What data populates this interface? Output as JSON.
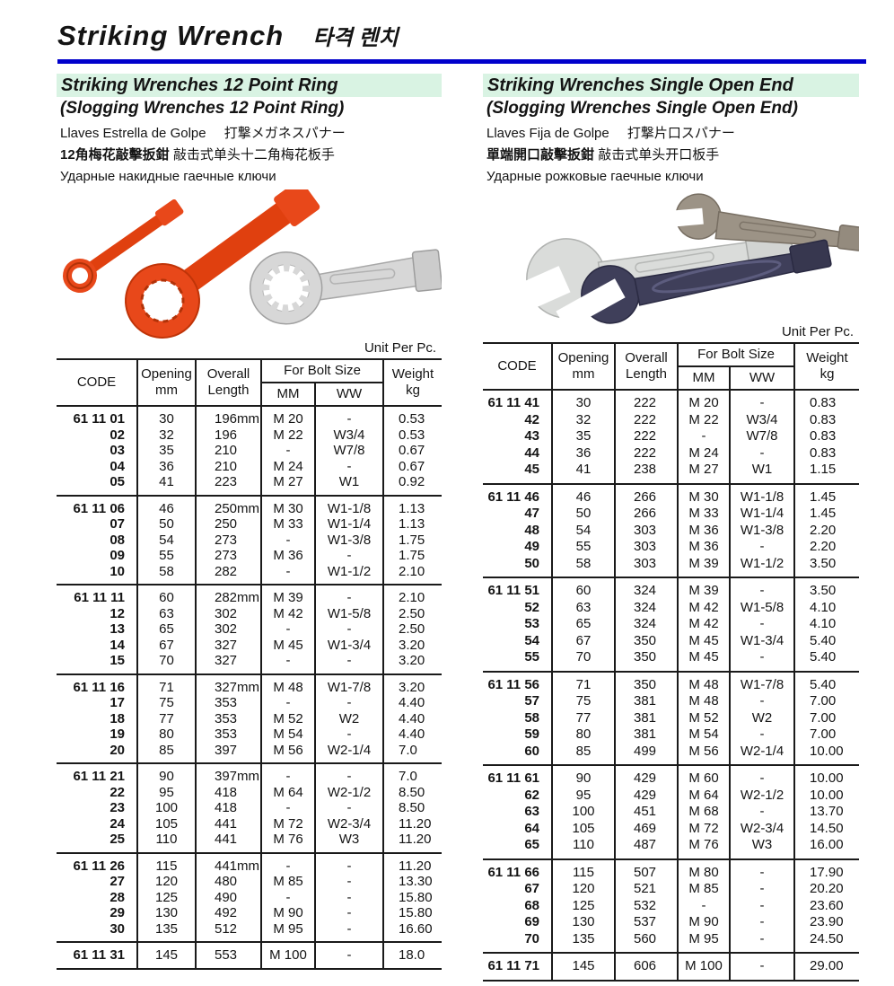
{
  "page": {
    "title_en": "Striking Wrench",
    "title_ko": "타격 렌치",
    "colors": {
      "accent_rule": "#0000cc",
      "heading_highlight": "#d9f3e3"
    }
  },
  "unit_label": "Unit Per Pc.",
  "table_headers": {
    "code": "CODE",
    "opening": "Opening\nmm",
    "length": "Overall\nLength",
    "bolt": "For Bolt Size",
    "mm": "MM",
    "ww": "WW",
    "weight": "Weight\nkg"
  },
  "sections": [
    {
      "heading": "Striking Wrenches 12 Point Ring",
      "subheading": "(Slogging Wrenches 12 Point Ring)",
      "name_es": "Llaves Estrella de Golpe",
      "name_ja": "打撃メガネスパナー",
      "name_zh_hant": "12角梅花敲擊扳鉗",
      "name_zh_hans": "敲击式单头十二角梅花板手",
      "name_ru": "Ударные накидные гаечные ключи",
      "table": {
        "groups": [
          [
            [
              "61 11 01",
              "30",
              "196mm",
              "M 20",
              "-",
              "0.53"
            ],
            [
              "02",
              "32",
              "196",
              "M 22",
              "W3/4",
              "0.53"
            ],
            [
              "03",
              "35",
              "210",
              "-",
              "W7/8",
              "0.67"
            ],
            [
              "04",
              "36",
              "210",
              "M 24",
              "-",
              "0.67"
            ],
            [
              "05",
              "41",
              "223",
              "M 27",
              "W1",
              "0.92"
            ]
          ],
          [
            [
              "61 11 06",
              "46",
              "250mm",
              "M 30",
              "W1-1/8",
              "1.13"
            ],
            [
              "07",
              "50",
              "250",
              "M 33",
              "W1-1/4",
              "1.13"
            ],
            [
              "08",
              "54",
              "273",
              "-",
              "W1-3/8",
              "1.75"
            ],
            [
              "09",
              "55",
              "273",
              "M 36",
              "-",
              "1.75"
            ],
            [
              "10",
              "58",
              "282",
              "-",
              "W1-1/2",
              "2.10"
            ]
          ],
          [
            [
              "61 11 11",
              "60",
              "282mm",
              "M 39",
              "-",
              "2.10"
            ],
            [
              "12",
              "63",
              "302",
              "M 42",
              "W1-5/8",
              "2.50"
            ],
            [
              "13",
              "65",
              "302",
              "-",
              "-",
              "2.50"
            ],
            [
              "14",
              "67",
              "327",
              "M 45",
              "W1-3/4",
              "3.20"
            ],
            [
              "15",
              "70",
              "327",
              "-",
              "-",
              "3.20"
            ]
          ],
          [
            [
              "61 11 16",
              "71",
              "327mm",
              "M 48",
              "W1-7/8",
              "3.20"
            ],
            [
              "17",
              "75",
              "353",
              "-",
              "-",
              "4.40"
            ],
            [
              "18",
              "77",
              "353",
              "M 52",
              "W2",
              "4.40"
            ],
            [
              "19",
              "80",
              "353",
              "M 54",
              "-",
              "4.40"
            ],
            [
              "20",
              "85",
              "397",
              "M 56",
              "W2-1/4",
              "7.0"
            ]
          ],
          [
            [
              "61 11 21",
              "90",
              "397mm",
              "-",
              "-",
              "7.0"
            ],
            [
              "22",
              "95",
              "418",
              "M 64",
              "W2-1/2",
              "8.50"
            ],
            [
              "23",
              "100",
              "418",
              "-",
              "-",
              "8.50"
            ],
            [
              "24",
              "105",
              "441",
              "M 72",
              "W2-3/4",
              "11.20"
            ],
            [
              "25",
              "110",
              "441",
              "M 76",
              "W3",
              "11.20"
            ]
          ],
          [
            [
              "61 11 26",
              "115",
              "441mm",
              "-",
              "-",
              "11.20"
            ],
            [
              "27",
              "120",
              "480",
              "M 85",
              "-",
              "13.30"
            ],
            [
              "28",
              "125",
              "490",
              "-",
              "-",
              "15.80"
            ],
            [
              "29",
              "130",
              "492",
              "M 90",
              "-",
              "15.80"
            ],
            [
              "30",
              "135",
              "512",
              "M 95",
              "-",
              "16.60"
            ]
          ],
          [
            [
              "61 11 31",
              "145",
              "553",
              "M 100",
              "-",
              "18.0"
            ]
          ]
        ]
      }
    },
    {
      "heading": "Striking Wrenches Single Open End",
      "subheading": "(Slogging Wrenches Single Open End)",
      "name_es": "Llaves Fija de Golpe",
      "name_ja": "打撃片口スパナー",
      "name_zh_hant": "單端開口敲擊扳鉗",
      "name_zh_hans": "敲击式单头开口板手",
      "name_ru": "Ударные рожковые гаечные ключи",
      "table": {
        "groups": [
          [
            [
              "61 11 41",
              "30",
              "222",
              "M 20",
              "-",
              "0.83"
            ],
            [
              "42",
              "32",
              "222",
              "M 22",
              "W3/4",
              "0.83"
            ],
            [
              "43",
              "35",
              "222",
              "-",
              "W7/8",
              "0.83"
            ],
            [
              "44",
              "36",
              "222",
              "M 24",
              "-",
              "0.83"
            ],
            [
              "45",
              "41",
              "238",
              "M 27",
              "W1",
              "1.15"
            ]
          ],
          [
            [
              "61 11 46",
              "46",
              "266",
              "M 30",
              "W1-1/8",
              "1.45"
            ],
            [
              "47",
              "50",
              "266",
              "M 33",
              "W1-1/4",
              "1.45"
            ],
            [
              "48",
              "54",
              "303",
              "M 36",
              "W1-3/8",
              "2.20"
            ],
            [
              "49",
              "55",
              "303",
              "M 36",
              "-",
              "2.20"
            ],
            [
              "50",
              "58",
              "303",
              "M 39",
              "W1-1/2",
              "3.50"
            ]
          ],
          [
            [
              "61 11 51",
              "60",
              "324",
              "M 39",
              "-",
              "3.50"
            ],
            [
              "52",
              "63",
              "324",
              "M 42",
              "W1-5/8",
              "4.10"
            ],
            [
              "53",
              "65",
              "324",
              "M 42",
              "-",
              "4.10"
            ],
            [
              "54",
              "67",
              "350",
              "M 45",
              "W1-3/4",
              "5.40"
            ],
            [
              "55",
              "70",
              "350",
              "M 45",
              "-",
              "5.40"
            ]
          ],
          [
            [
              "61 11 56",
              "71",
              "350",
              "M 48",
              "W1-7/8",
              "5.40"
            ],
            [
              "57",
              "75",
              "381",
              "M 48",
              "-",
              "7.00"
            ],
            [
              "58",
              "77",
              "381",
              "M 52",
              "W2",
              "7.00"
            ],
            [
              "59",
              "80",
              "381",
              "M 54",
              "-",
              "7.00"
            ],
            [
              "60",
              "85",
              "499",
              "M 56",
              "W2-1/4",
              "10.00"
            ]
          ],
          [
            [
              "61 11 61",
              "90",
              "429",
              "M 60",
              "-",
              "10.00"
            ],
            [
              "62",
              "95",
              "429",
              "M 64",
              "W2-1/2",
              "10.00"
            ],
            [
              "63",
              "100",
              "451",
              "M 68",
              "-",
              "13.70"
            ],
            [
              "64",
              "105",
              "469",
              "M 72",
              "W2-3/4",
              "14.50"
            ],
            [
              "65",
              "110",
              "487",
              "M 76",
              "W3",
              "16.00"
            ]
          ],
          [
            [
              "61 11 66",
              "115",
              "507",
              "M 80",
              "-",
              "17.90"
            ],
            [
              "67",
              "120",
              "521",
              "M 85",
              "-",
              "20.20"
            ],
            [
              "68",
              "125",
              "532",
              "-",
              "-",
              "23.60"
            ],
            [
              "69",
              "130",
              "537",
              "M 90",
              "-",
              "23.90"
            ],
            [
              "70",
              "135",
              "560",
              "M 95",
              "-",
              "24.50"
            ]
          ],
          [
            [
              "61 11 71",
              "145",
              "606",
              "M 100",
              "-",
              "29.00"
            ]
          ]
        ]
      }
    }
  ]
}
